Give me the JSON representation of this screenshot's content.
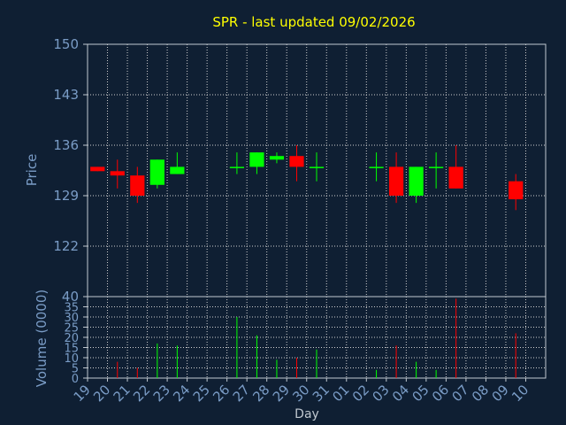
{
  "chart_data": [
    {
      "type": "candlestick",
      "title": "SPR - last updated 09/02/2026",
      "ylabel": "Price",
      "ylim": [
        115,
        150
      ],
      "yticks": [
        150,
        143,
        136,
        129,
        122
      ],
      "categories": [
        "19",
        "20",
        "21",
        "22",
        "23",
        "24",
        "25",
        "26",
        "27",
        "28",
        "29",
        "30",
        "31",
        "01",
        "02",
        "03",
        "04",
        "05",
        "06",
        "07",
        "08",
        "09",
        "10"
      ],
      "up_color": "#00ff00",
      "down_color": "#ff0000",
      "grid": true,
      "candles": [
        {
          "x": "19",
          "open": 133.0,
          "close": 132.4,
          "high": 133.0,
          "low": 132.4
        },
        {
          "x": "20",
          "open": 132.4,
          "close": 131.8,
          "high": 134.0,
          "low": 130.0
        },
        {
          "x": "21",
          "open": 131.8,
          "close": 129.0,
          "high": 133.0,
          "low": 128.0
        },
        {
          "x": "22",
          "open": 130.5,
          "close": 134.0,
          "high": 134.0,
          "low": 130.0
        },
        {
          "x": "23",
          "open": 132.0,
          "close": 133.0,
          "high": 135.0,
          "low": 132.0
        },
        {
          "x": "26",
          "open": 133.0,
          "close": 133.0,
          "high": 135.0,
          "low": 132.0
        },
        {
          "x": "27",
          "open": 133.0,
          "close": 135.0,
          "high": 135.0,
          "low": 132.0
        },
        {
          "x": "28",
          "open": 134.0,
          "close": 134.5,
          "high": 135.0,
          "low": 133.5
        },
        {
          "x": "29",
          "open": 134.5,
          "close": 133.0,
          "high": 136.0,
          "low": 131.0
        },
        {
          "x": "30",
          "open": 133.0,
          "close": 133.0,
          "high": 135.0,
          "low": 131.0
        },
        {
          "x": "02",
          "open": 133.0,
          "close": 133.0,
          "high": 135.0,
          "low": 131.0
        },
        {
          "x": "03",
          "open": 133.0,
          "close": 129.0,
          "high": 135.0,
          "low": 128.0
        },
        {
          "x": "04",
          "open": 129.0,
          "close": 133.0,
          "high": 133.0,
          "low": 128.0
        },
        {
          "x": "05",
          "open": 133.0,
          "close": 133.0,
          "high": 135.0,
          "low": 130.0
        },
        {
          "x": "06",
          "open": 133.0,
          "close": 130.0,
          "high": 136.0,
          "low": 130.0
        },
        {
          "x": "09",
          "open": 131.0,
          "close": 128.5,
          "high": 132.0,
          "low": 127.0
        }
      ]
    },
    {
      "type": "bar",
      "ylabel": "Volume (0000)",
      "xlabel": "Day",
      "ylim": [
        0,
        40
      ],
      "yticks": [
        40,
        35,
        30,
        25,
        20,
        15,
        10,
        5,
        0
      ],
      "categories": [
        "19",
        "20",
        "21",
        "22",
        "23",
        "24",
        "25",
        "26",
        "27",
        "28",
        "29",
        "30",
        "31",
        "01",
        "02",
        "03",
        "04",
        "05",
        "06",
        "07",
        "08",
        "09",
        "10"
      ],
      "grid": true,
      "bars": [
        {
          "x": "20",
          "value": 8,
          "color": "#ff0000"
        },
        {
          "x": "21",
          "value": 5,
          "color": "#ff0000"
        },
        {
          "x": "22",
          "value": 17,
          "color": "#00ff00"
        },
        {
          "x": "23",
          "value": 16,
          "color": "#00ff00"
        },
        {
          "x": "26",
          "value": 30,
          "color": "#00ff00"
        },
        {
          "x": "27",
          "value": 21,
          "color": "#00ff00"
        },
        {
          "x": "28",
          "value": 9,
          "color": "#00ff00"
        },
        {
          "x": "29",
          "value": 10,
          "color": "#ff0000"
        },
        {
          "x": "30",
          "value": 14,
          "color": "#00ff00"
        },
        {
          "x": "02",
          "value": 4,
          "color": "#00ff00"
        },
        {
          "x": "03",
          "value": 16,
          "color": "#ff0000"
        },
        {
          "x": "04",
          "value": 8,
          "color": "#00ff00"
        },
        {
          "x": "05",
          "value": 4,
          "color": "#00ff00"
        },
        {
          "x": "06",
          "value": 39,
          "color": "#ff0000"
        },
        {
          "x": "09",
          "value": 22,
          "color": "#ff0000"
        }
      ]
    }
  ]
}
